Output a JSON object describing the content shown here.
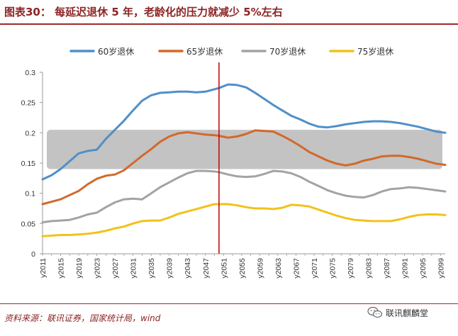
{
  "header": {
    "title": "图表30：  每延迟退休 5 年，老龄化的压力就减少 5%左右"
  },
  "footer": {
    "source": "资料来源：联讯证券，国家统计局，wind",
    "brand": "联讯麒麟堂"
  },
  "chart_data": {
    "type": "line",
    "title": "图表30：  每延迟退休 5 年，老龄化的压力就减少 5%左右",
    "xlabel": "",
    "ylabel": "",
    "ylim": [
      0,
      0.3
    ],
    "yticks": [
      "0",
      "0.05",
      "0.1",
      "0.15",
      "0.2",
      "0.25",
      "0.3"
    ],
    "yticks_values": [
      0,
      0.05,
      0.1,
      0.15,
      0.2,
      0.25,
      0.3
    ],
    "x_tick_labels": [
      "y2011",
      "y2015",
      "y2019",
      "y2023",
      "y2027",
      "y2031",
      "y2035",
      "y2039",
      "y2043",
      "y2047",
      "y2051",
      "y2055",
      "y2059",
      "y2063",
      "y2067",
      "y2071",
      "y2075",
      "y2079",
      "y2083",
      "y2087",
      "y2091",
      "y2095",
      "y2099"
    ],
    "xlim": [
      2011,
      2100
    ],
    "legend_position": "top",
    "colors": {
      "s60": "#4f8fc9",
      "s65": "#d2692a",
      "s70": "#a3a3a3",
      "s75": "#f2c21b",
      "vline": "#c00000",
      "band": "#bdbdbd"
    },
    "highlight_band": {
      "y_from": 0.14,
      "y_to": 0.205
    },
    "vertical_line": {
      "x": 2050
    },
    "series": [
      {
        "name": "60岁退休",
        "color": "#4f8fc9",
        "points": [
          [
            2011,
            0.123
          ],
          [
            2013,
            0.13
          ],
          [
            2015,
            0.14
          ],
          [
            2017,
            0.153
          ],
          [
            2019,
            0.166
          ],
          [
            2021,
            0.17
          ],
          [
            2023,
            0.172
          ],
          [
            2025,
            0.19
          ],
          [
            2027,
            0.205
          ],
          [
            2029,
            0.22
          ],
          [
            2031,
            0.237
          ],
          [
            2033,
            0.253
          ],
          [
            2035,
            0.262
          ],
          [
            2037,
            0.266
          ],
          [
            2039,
            0.267
          ],
          [
            2041,
            0.268
          ],
          [
            2043,
            0.268
          ],
          [
            2045,
            0.267
          ],
          [
            2047,
            0.268
          ],
          [
            2049,
            0.272
          ],
          [
            2050,
            0.274
          ],
          [
            2052,
            0.28
          ],
          [
            2054,
            0.279
          ],
          [
            2056,
            0.275
          ],
          [
            2058,
            0.266
          ],
          [
            2060,
            0.256
          ],
          [
            2062,
            0.246
          ],
          [
            2064,
            0.237
          ],
          [
            2066,
            0.228
          ],
          [
            2068,
            0.222
          ],
          [
            2070,
            0.215
          ],
          [
            2072,
            0.21
          ],
          [
            2074,
            0.209
          ],
          [
            2076,
            0.211
          ],
          [
            2078,
            0.214
          ],
          [
            2080,
            0.216
          ],
          [
            2082,
            0.218
          ],
          [
            2084,
            0.219
          ],
          [
            2086,
            0.219
          ],
          [
            2088,
            0.218
          ],
          [
            2090,
            0.216
          ],
          [
            2092,
            0.213
          ],
          [
            2094,
            0.21
          ],
          [
            2096,
            0.206
          ],
          [
            2098,
            0.202
          ],
          [
            2100,
            0.2
          ]
        ]
      },
      {
        "name": "65岁退休",
        "color": "#d2692a",
        "points": [
          [
            2011,
            0.082
          ],
          [
            2013,
            0.086
          ],
          [
            2015,
            0.09
          ],
          [
            2017,
            0.097
          ],
          [
            2019,
            0.104
          ],
          [
            2021,
            0.115
          ],
          [
            2023,
            0.124
          ],
          [
            2025,
            0.129
          ],
          [
            2027,
            0.131
          ],
          [
            2029,
            0.138
          ],
          [
            2031,
            0.15
          ],
          [
            2033,
            0.162
          ],
          [
            2035,
            0.173
          ],
          [
            2037,
            0.185
          ],
          [
            2039,
            0.194
          ],
          [
            2041,
            0.199
          ],
          [
            2043,
            0.201
          ],
          [
            2045,
            0.199
          ],
          [
            2047,
            0.197
          ],
          [
            2049,
            0.196
          ],
          [
            2050,
            0.195
          ],
          [
            2052,
            0.192
          ],
          [
            2054,
            0.194
          ],
          [
            2056,
            0.198
          ],
          [
            2058,
            0.204
          ],
          [
            2060,
            0.203
          ],
          [
            2062,
            0.202
          ],
          [
            2064,
            0.195
          ],
          [
            2066,
            0.187
          ],
          [
            2068,
            0.178
          ],
          [
            2070,
            0.168
          ],
          [
            2072,
            0.161
          ],
          [
            2074,
            0.154
          ],
          [
            2076,
            0.149
          ],
          [
            2078,
            0.146
          ],
          [
            2080,
            0.149
          ],
          [
            2082,
            0.154
          ],
          [
            2084,
            0.157
          ],
          [
            2086,
            0.161
          ],
          [
            2088,
            0.162
          ],
          [
            2090,
            0.162
          ],
          [
            2092,
            0.16
          ],
          [
            2094,
            0.157
          ],
          [
            2096,
            0.153
          ],
          [
            2098,
            0.149
          ],
          [
            2100,
            0.147
          ]
        ]
      },
      {
        "name": "70岁退休",
        "color": "#a3a3a3",
        "points": [
          [
            2011,
            0.052
          ],
          [
            2013,
            0.054
          ],
          [
            2015,
            0.055
          ],
          [
            2017,
            0.056
          ],
          [
            2019,
            0.06
          ],
          [
            2021,
            0.065
          ],
          [
            2023,
            0.068
          ],
          [
            2025,
            0.077
          ],
          [
            2027,
            0.085
          ],
          [
            2029,
            0.09
          ],
          [
            2031,
            0.091
          ],
          [
            2033,
            0.09
          ],
          [
            2035,
            0.1
          ],
          [
            2037,
            0.11
          ],
          [
            2039,
            0.118
          ],
          [
            2041,
            0.126
          ],
          [
            2043,
            0.133
          ],
          [
            2045,
            0.137
          ],
          [
            2047,
            0.137
          ],
          [
            2049,
            0.136
          ],
          [
            2050,
            0.135
          ],
          [
            2052,
            0.131
          ],
          [
            2054,
            0.128
          ],
          [
            2056,
            0.127
          ],
          [
            2058,
            0.128
          ],
          [
            2060,
            0.132
          ],
          [
            2062,
            0.137
          ],
          [
            2064,
            0.136
          ],
          [
            2066,
            0.133
          ],
          [
            2068,
            0.127
          ],
          [
            2070,
            0.119
          ],
          [
            2072,
            0.112
          ],
          [
            2074,
            0.105
          ],
          [
            2076,
            0.1
          ],
          [
            2078,
            0.096
          ],
          [
            2080,
            0.094
          ],
          [
            2082,
            0.093
          ],
          [
            2084,
            0.097
          ],
          [
            2086,
            0.103
          ],
          [
            2088,
            0.107
          ],
          [
            2090,
            0.108
          ],
          [
            2092,
            0.11
          ],
          [
            2094,
            0.109
          ],
          [
            2096,
            0.107
          ],
          [
            2098,
            0.105
          ],
          [
            2100,
            0.103
          ]
        ]
      },
      {
        "name": "75岁退休",
        "color": "#f2c21b",
        "points": [
          [
            2011,
            0.029
          ],
          [
            2013,
            0.03
          ],
          [
            2015,
            0.031
          ],
          [
            2017,
            0.031
          ],
          [
            2019,
            0.032
          ],
          [
            2021,
            0.033
          ],
          [
            2023,
            0.035
          ],
          [
            2025,
            0.038
          ],
          [
            2027,
            0.042
          ],
          [
            2029,
            0.045
          ],
          [
            2031,
            0.05
          ],
          [
            2033,
            0.054
          ],
          [
            2035,
            0.055
          ],
          [
            2037,
            0.055
          ],
          [
            2039,
            0.06
          ],
          [
            2041,
            0.066
          ],
          [
            2043,
            0.07
          ],
          [
            2045,
            0.074
          ],
          [
            2047,
            0.078
          ],
          [
            2049,
            0.082
          ],
          [
            2050,
            0.082
          ],
          [
            2052,
            0.082
          ],
          [
            2054,
            0.08
          ],
          [
            2056,
            0.077
          ],
          [
            2058,
            0.075
          ],
          [
            2060,
            0.075
          ],
          [
            2062,
            0.074
          ],
          [
            2064,
            0.076
          ],
          [
            2066,
            0.081
          ],
          [
            2068,
            0.08
          ],
          [
            2070,
            0.078
          ],
          [
            2072,
            0.073
          ],
          [
            2074,
            0.068
          ],
          [
            2076,
            0.063
          ],
          [
            2078,
            0.059
          ],
          [
            2080,
            0.056
          ],
          [
            2082,
            0.055
          ],
          [
            2084,
            0.054
          ],
          [
            2086,
            0.054
          ],
          [
            2088,
            0.054
          ],
          [
            2090,
            0.057
          ],
          [
            2092,
            0.061
          ],
          [
            2094,
            0.064
          ],
          [
            2096,
            0.065
          ],
          [
            2098,
            0.065
          ],
          [
            2100,
            0.064
          ]
        ]
      }
    ]
  }
}
